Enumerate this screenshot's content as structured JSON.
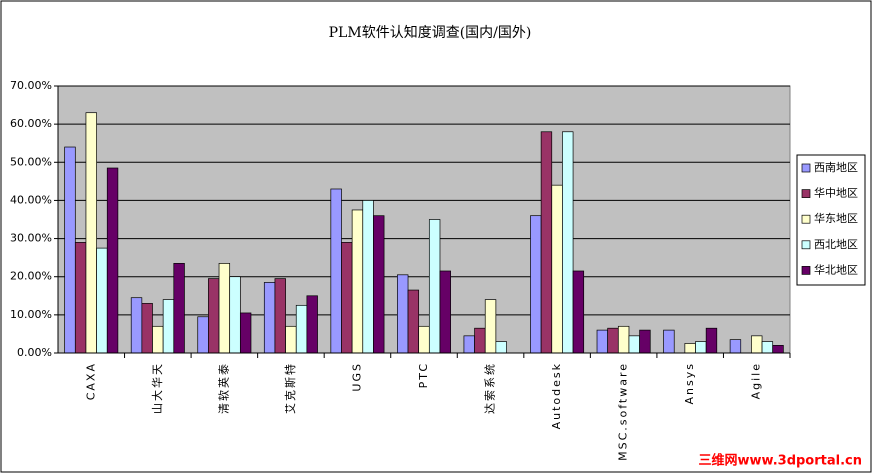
{
  "chart_data": {
    "type": "bar",
    "title": "PLM软件认知度调查(国内/国外)",
    "categories": [
      "CAXA",
      "山大华天",
      "清软英泰",
      "艾克斯特",
      "UGS",
      "PTC",
      "达索系统",
      "Autodesk",
      "MSC.software",
      "Ansys",
      "Agile"
    ],
    "series": [
      {
        "name": "西南地区",
        "color": "#9999ff",
        "values": [
          54,
          14.5,
          9.5,
          18.5,
          43,
          20.5,
          4.5,
          36,
          6,
          6,
          3.5
        ]
      },
      {
        "name": "华中地区",
        "color": "#993366",
        "values": [
          29,
          13,
          19.5,
          19.5,
          29,
          16.5,
          6.5,
          58,
          6.5,
          0,
          0
        ]
      },
      {
        "name": "华东地区",
        "color": "#ffffcc",
        "values": [
          63,
          7,
          23.5,
          7,
          37.5,
          7,
          14,
          44,
          7,
          2.5,
          4.5
        ]
      },
      {
        "name": "西北地区",
        "color": "#ccffff",
        "values": [
          27.5,
          14,
          20,
          12.5,
          40,
          35,
          3,
          58,
          4.5,
          3,
          3
        ]
      },
      {
        "name": "华北地区",
        "color": "#660066",
        "values": [
          48.5,
          23.5,
          10.5,
          15,
          36,
          21.5,
          0,
          21.5,
          6,
          6.5,
          2
        ]
      }
    ],
    "ylim": [
      0,
      70
    ],
    "yticks": [
      {
        "value": 0,
        "label": "0.00%"
      },
      {
        "value": 10,
        "label": "10.00%"
      },
      {
        "value": 20,
        "label": "20.00%"
      },
      {
        "value": 30,
        "label": "30.00%"
      },
      {
        "value": 40,
        "label": "40.00%"
      },
      {
        "value": 50,
        "label": "50.00%"
      },
      {
        "value": 60,
        "label": "60.00%"
      },
      {
        "value": 70,
        "label": "70.00%"
      }
    ],
    "grid": true,
    "legend": "right",
    "plot_background": "#c0c0c0",
    "watermark": "三维网www.3dportal.cn"
  }
}
